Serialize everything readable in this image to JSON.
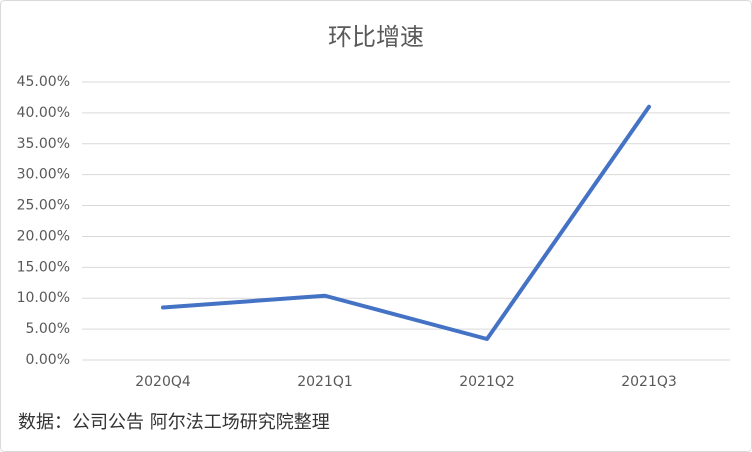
{
  "chart_data": {
    "type": "line",
    "title": "环比增速",
    "categories": [
      "2020Q4",
      "2021Q1",
      "2021Q2",
      "2021Q3"
    ],
    "series": [
      {
        "name": "环比增速",
        "color": "#4472c4",
        "values": [
          8.5,
          10.4,
          3.4,
          41.0
        ]
      }
    ],
    "ylim": [
      0,
      45
    ],
    "yticks": [
      {
        "value": 0,
        "label": "0.00%"
      },
      {
        "value": 5,
        "label": "5.00%"
      },
      {
        "value": 10,
        "label": "10.00%"
      },
      {
        "value": 15,
        "label": "15.00%"
      },
      {
        "value": 20,
        "label": "20.00%"
      },
      {
        "value": 25,
        "label": "25.00%"
      },
      {
        "value": 30,
        "label": "30.00%"
      },
      {
        "value": 35,
        "label": "35.00%"
      },
      {
        "value": 40,
        "label": "40.00%"
      },
      {
        "value": 45,
        "label": "45.00%"
      }
    ],
    "grid": true,
    "source": "数据：公司公告 阿尔法工场研究院整理"
  }
}
